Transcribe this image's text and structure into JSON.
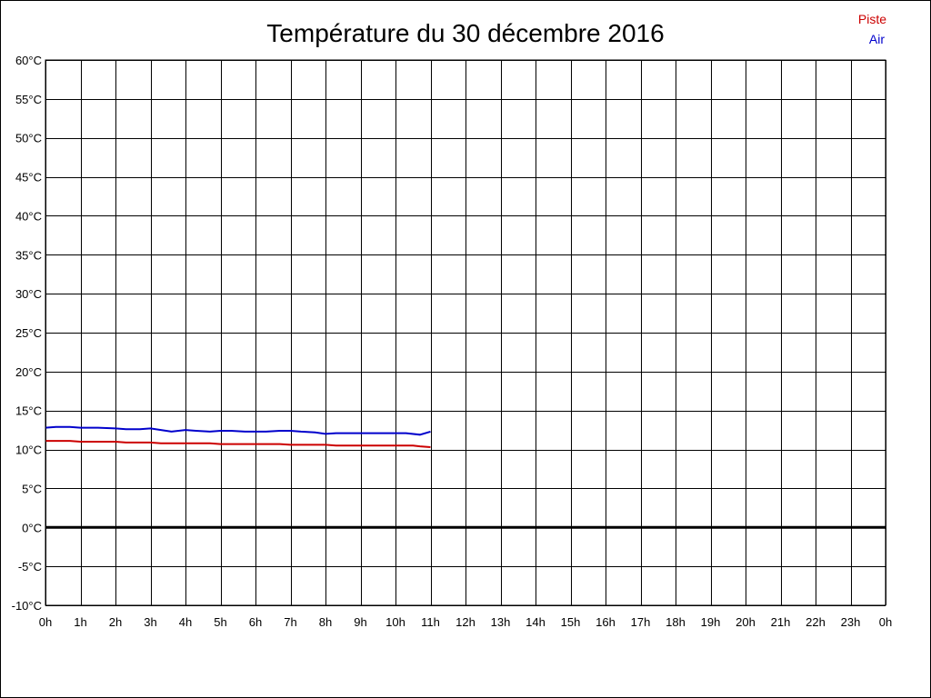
{
  "chart_data": {
    "type": "line",
    "title": "Température du 30 décembre 2016",
    "xlabel": "",
    "ylabel": "",
    "x_unit": "hours",
    "xlim": [
      0,
      24
    ],
    "ylim": [
      -10,
      60
    ],
    "y_ticks": [
      60,
      55,
      50,
      45,
      40,
      35,
      30,
      25,
      20,
      15,
      10,
      5,
      0,
      -5,
      -10
    ],
    "y_tick_labels": [
      "60°C",
      "55°C",
      "50°C",
      "45°C",
      "40°C",
      "35°C",
      "30°C",
      "25°C",
      "20°C",
      "15°C",
      "10°C",
      "5°C",
      "0°C",
      "-5°C",
      "-10°C"
    ],
    "x_ticks": [
      0,
      1,
      2,
      3,
      4,
      5,
      6,
      7,
      8,
      9,
      10,
      11,
      12,
      13,
      14,
      15,
      16,
      17,
      18,
      19,
      20,
      21,
      22,
      23,
      24
    ],
    "x_tick_labels": [
      "0h",
      "1h",
      "2h",
      "3h",
      "4h",
      "5h",
      "6h",
      "7h",
      "8h",
      "9h",
      "10h",
      "11h",
      "12h",
      "13h",
      "14h",
      "15h",
      "16h",
      "17h",
      "18h",
      "19h",
      "20h",
      "21h",
      "22h",
      "23h",
      "0h"
    ],
    "grid": true,
    "zero_line": true,
    "legend_position": "top-right",
    "series": [
      {
        "name": "Piste",
        "color": "#cc0000",
        "x": [
          0,
          0.7,
          1.0,
          2.0,
          2.3,
          3.0,
          3.3,
          4.0,
          4.7,
          5.0,
          6.0,
          6.7,
          7.0,
          7.5,
          8.0,
          8.3,
          9.0,
          9.5,
          10.0,
          10.5,
          10.7,
          11.0
        ],
        "y": [
          11.1,
          11.1,
          11.0,
          11.0,
          10.9,
          10.9,
          10.8,
          10.8,
          10.8,
          10.7,
          10.7,
          10.7,
          10.6,
          10.6,
          10.6,
          10.5,
          10.5,
          10.5,
          10.5,
          10.5,
          10.4,
          10.3
        ]
      },
      {
        "name": "Air",
        "color": "#0000cc",
        "x": [
          0,
          0.3,
          0.7,
          1.0,
          1.5,
          2.0,
          2.3,
          2.7,
          3.0,
          3.3,
          3.6,
          4.0,
          4.3,
          4.7,
          5.0,
          5.3,
          5.7,
          6.0,
          6.3,
          6.7,
          7.0,
          7.3,
          7.7,
          8.0,
          8.3,
          8.7,
          9.0,
          9.3,
          9.7,
          10.0,
          10.3,
          10.7,
          11.0
        ],
        "y": [
          12.8,
          12.9,
          12.9,
          12.8,
          12.8,
          12.7,
          12.6,
          12.6,
          12.7,
          12.5,
          12.3,
          12.5,
          12.4,
          12.3,
          12.4,
          12.4,
          12.3,
          12.3,
          12.3,
          12.4,
          12.4,
          12.3,
          12.2,
          12.0,
          12.1,
          12.1,
          12.1,
          12.1,
          12.1,
          12.1,
          12.1,
          11.9,
          12.3
        ]
      }
    ]
  }
}
